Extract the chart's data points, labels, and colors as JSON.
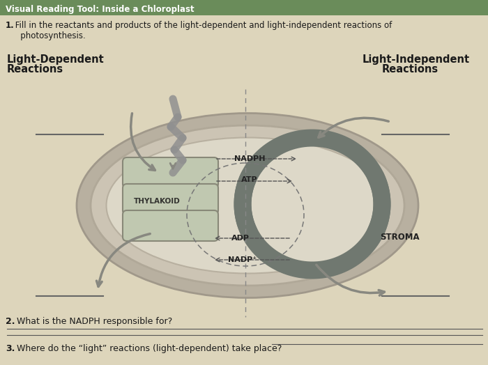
{
  "title": "Visual Reading Tool: Inside a Chloroplast",
  "title_bg": "#6a8c5a",
  "title_color": "#ffffff",
  "page_bg": "#ddd5bb",
  "question1_bold": "1.",
  "question1_text": " Fill in the reactants and products of the light-dependent and light-independent reactions of\n   photosynthesis.",
  "left_label_line1": "Light-Dependent",
  "left_label_line2": "Reactions",
  "right_label_line1": "Light-Independent",
  "right_label_line2": "Reactions",
  "thylakoid_label": "THYLAKOID",
  "stroma_label": "STROMA",
  "nadph_label": "NADPH",
  "atp_label": "ATP",
  "adp_label": "ADP",
  "nadp_label": "NADP⁺",
  "question2_bold": "2.",
  "question2_text": " What is the NADPH responsible for?",
  "question3_bold": "3.",
  "question3_text": " Where do the “light” reactions (light-dependent) take place?",
  "outer_ellipse_fc": "#b8b0a0",
  "outer_ellipse_ec": "#a0988a",
  "mid_ellipse_fc": "#ccc4b4",
  "inner_ellipse_fc": "#ddd8c8",
  "thylakoid_fc": "#b8c0a8",
  "thylakoid_ec": "#888878",
  "cycle_arrow_color": "#707870",
  "dashed_color": "#555555",
  "text_color": "#1a1a1a",
  "line_color": "#666666",
  "divider_color": "#888888"
}
